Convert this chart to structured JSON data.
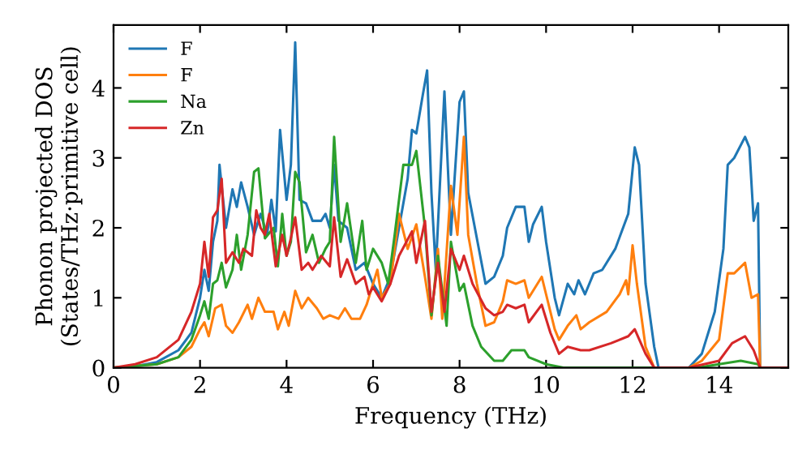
{
  "chart_data": {
    "type": "line",
    "xlabel": "Frequency (THz)",
    "ylabel": "Phonon projected DOS\n(States/THz·primitive cell)",
    "xlim": [
      0,
      15.6
    ],
    "ylim": [
      0,
      4.9
    ],
    "xticks": [
      0,
      2,
      4,
      6,
      8,
      10,
      12,
      14
    ],
    "yticks": [
      0,
      1,
      2,
      3,
      4
    ],
    "grid": false,
    "legend": "top left",
    "marker": "none",
    "line_style": "solid",
    "series": [
      {
        "name": "F",
        "color": "#1f77b4",
        "x": [
          0,
          0.5,
          1,
          1.5,
          1.8,
          2.0,
          2.1,
          2.2,
          2.3,
          2.4,
          2.45,
          2.6,
          2.75,
          2.85,
          2.95,
          3.1,
          3.25,
          3.4,
          3.55,
          3.65,
          3.75,
          3.85,
          4.0,
          4.1,
          4.2,
          4.3,
          4.45,
          4.6,
          4.8,
          4.9,
          5.0,
          5.1,
          5.2,
          5.4,
          5.6,
          5.8,
          6.0,
          6.2,
          6.4,
          6.6,
          6.8,
          6.9,
          7.0,
          7.15,
          7.25,
          7.35,
          7.45,
          7.65,
          7.8,
          8.0,
          8.1,
          8.2,
          8.4,
          8.6,
          8.8,
          9.0,
          9.1,
          9.3,
          9.5,
          9.6,
          9.7,
          9.9,
          10.0,
          10.2,
          10.3,
          10.5,
          10.65,
          10.75,
          10.9,
          11.1,
          11.3,
          11.6,
          11.9,
          12.05,
          12.15,
          12.3,
          12.5,
          12.6,
          13.3,
          13.6,
          13.9,
          14.1,
          14.2,
          14.35,
          14.6,
          14.7,
          14.8,
          14.9,
          14.95,
          15.6
        ],
        "values": [
          0,
          0.02,
          0.08,
          0.25,
          0.5,
          1.0,
          1.4,
          1.1,
          1.8,
          2.1,
          2.9,
          2.0,
          2.55,
          2.3,
          2.65,
          2.3,
          1.9,
          2.2,
          1.9,
          2.4,
          1.95,
          3.4,
          2.4,
          2.9,
          4.65,
          2.4,
          2.35,
          2.1,
          2.1,
          2.2,
          2.0,
          2.9,
          2.1,
          2.0,
          1.4,
          1.5,
          1.2,
          1.0,
          1.3,
          2.0,
          2.7,
          3.4,
          3.35,
          3.9,
          4.25,
          2.5,
          1.4,
          3.95,
          1.9,
          3.8,
          3.95,
          2.5,
          1.85,
          1.2,
          1.3,
          1.6,
          2.0,
          2.3,
          2.3,
          1.8,
          2.05,
          2.3,
          1.8,
          1.0,
          0.75,
          1.2,
          1.05,
          1.25,
          1.05,
          1.35,
          1.4,
          1.7,
          2.2,
          3.15,
          2.9,
          1.2,
          0.3,
          0,
          0,
          0.2,
          0.8,
          1.7,
          2.9,
          3.0,
          3.3,
          3.15,
          2.1,
          2.35,
          0,
          0
        ]
      },
      {
        "name": "F",
        "color": "#ff7f0e",
        "x": [
          0,
          1,
          1.5,
          1.8,
          2.0,
          2.1,
          2.2,
          2.35,
          2.5,
          2.6,
          2.75,
          2.9,
          3.1,
          3.2,
          3.35,
          3.5,
          3.7,
          3.8,
          3.95,
          4.05,
          4.2,
          4.35,
          4.5,
          4.7,
          4.85,
          5.0,
          5.2,
          5.35,
          5.5,
          5.7,
          5.85,
          6.0,
          6.1,
          6.2,
          6.4,
          6.6,
          6.8,
          7.0,
          7.2,
          7.35,
          7.5,
          7.6,
          7.8,
          7.95,
          8.1,
          8.2,
          8.4,
          8.6,
          8.8,
          9.0,
          9.1,
          9.3,
          9.5,
          9.6,
          9.9,
          10.0,
          10.2,
          10.3,
          10.5,
          10.7,
          10.8,
          11.0,
          11.4,
          11.7,
          11.85,
          11.9,
          12.0,
          12.1,
          12.3,
          12.5,
          13.3,
          13.6,
          14.0,
          14.2,
          14.35,
          14.6,
          14.75,
          14.9,
          14.95,
          15.6
        ],
        "values": [
          0,
          0.05,
          0.15,
          0.3,
          0.55,
          0.65,
          0.45,
          0.85,
          0.9,
          0.6,
          0.5,
          0.65,
          0.9,
          0.7,
          1.0,
          0.8,
          0.8,
          0.55,
          0.8,
          0.6,
          1.1,
          0.85,
          1.0,
          0.85,
          0.7,
          0.75,
          0.7,
          0.85,
          0.7,
          0.7,
          0.9,
          1.2,
          1.4,
          1.0,
          1.2,
          2.2,
          1.7,
          2.05,
          1.3,
          0.7,
          1.7,
          0.7,
          2.6,
          1.9,
          3.3,
          1.9,
          1.2,
          0.6,
          0.65,
          0.95,
          1.25,
          1.2,
          1.25,
          1.0,
          1.3,
          1.05,
          0.55,
          0.4,
          0.6,
          0.75,
          0.55,
          0.65,
          0.8,
          1.05,
          1.25,
          1.05,
          1.75,
          1.2,
          0.3,
          0,
          0,
          0.1,
          0.4,
          1.35,
          1.35,
          1.5,
          1.0,
          1.05,
          0,
          0
        ]
      },
      {
        "name": "Na",
        "color": "#2ca02c",
        "x": [
          0,
          1,
          1.5,
          1.8,
          2.0,
          2.1,
          2.2,
          2.3,
          2.4,
          2.5,
          2.6,
          2.75,
          2.85,
          2.95,
          3.1,
          3.25,
          3.35,
          3.5,
          3.7,
          3.8,
          3.9,
          4.0,
          4.1,
          4.2,
          4.3,
          4.45,
          4.6,
          4.75,
          4.9,
          5.0,
          5.1,
          5.25,
          5.4,
          5.6,
          5.75,
          5.85,
          6.0,
          6.2,
          6.35,
          6.5,
          6.7,
          6.9,
          7.0,
          7.2,
          7.35,
          7.5,
          7.7,
          7.8,
          8.0,
          8.1,
          8.3,
          8.5,
          8.8,
          9.0,
          9.2,
          9.5,
          9.6,
          10.0,
          10.4,
          13.5,
          14.0,
          14.5,
          14.9,
          14.95,
          15.6
        ],
        "values": [
          0,
          0.05,
          0.15,
          0.4,
          0.75,
          0.95,
          0.7,
          1.2,
          1.25,
          1.5,
          1.15,
          1.4,
          1.9,
          1.4,
          1.9,
          2.8,
          2.85,
          1.85,
          2.0,
          1.45,
          2.2,
          1.6,
          1.8,
          2.8,
          2.65,
          1.65,
          1.9,
          1.5,
          1.7,
          1.8,
          3.3,
          1.8,
          2.35,
          1.5,
          2.1,
          1.4,
          1.7,
          1.5,
          1.2,
          1.9,
          2.9,
          2.9,
          3.1,
          2.0,
          0.75,
          1.6,
          0.6,
          1.8,
          1.1,
          1.2,
          0.6,
          0.3,
          0.1,
          0.1,
          0.25,
          0.25,
          0.15,
          0.05,
          0,
          0,
          0.05,
          0.1,
          0.05,
          0,
          0
        ]
      },
      {
        "name": "Zn",
        "color": "#d62728",
        "x": [
          0,
          0.5,
          1,
          1.5,
          1.8,
          2.0,
          2.1,
          2.2,
          2.3,
          2.4,
          2.5,
          2.6,
          2.75,
          2.9,
          3.0,
          3.2,
          3.3,
          3.4,
          3.5,
          3.6,
          3.75,
          3.9,
          4.0,
          4.1,
          4.2,
          4.35,
          4.5,
          4.6,
          4.8,
          5.0,
          5.1,
          5.25,
          5.4,
          5.6,
          5.8,
          5.9,
          6.0,
          6.2,
          6.4,
          6.6,
          6.9,
          7.0,
          7.2,
          7.35,
          7.5,
          7.65,
          7.8,
          8.0,
          8.1,
          8.3,
          8.6,
          8.8,
          9.0,
          9.1,
          9.3,
          9.5,
          9.6,
          9.9,
          10.1,
          10.3,
          10.5,
          10.8,
          11.0,
          11.5,
          11.9,
          12.05,
          12.3,
          12.5,
          13.3,
          14.0,
          14.3,
          14.6,
          14.8,
          14.95,
          15.6
        ],
        "values": [
          0,
          0.05,
          0.15,
          0.4,
          0.8,
          1.2,
          1.8,
          1.3,
          2.15,
          2.25,
          2.7,
          1.5,
          1.65,
          1.5,
          1.7,
          1.6,
          2.25,
          2.0,
          1.9,
          2.2,
          1.45,
          1.9,
          1.6,
          1.85,
          2.15,
          1.4,
          1.5,
          1.4,
          1.6,
          1.45,
          2.15,
          1.3,
          1.55,
          1.2,
          1.3,
          1.05,
          1.15,
          0.95,
          1.2,
          1.6,
          1.95,
          1.5,
          2.1,
          0.8,
          1.5,
          0.8,
          1.7,
          1.4,
          1.6,
          1.2,
          0.85,
          0.75,
          0.8,
          0.9,
          0.85,
          0.9,
          0.65,
          0.9,
          0.5,
          0.2,
          0.3,
          0.25,
          0.25,
          0.35,
          0.45,
          0.55,
          0.2,
          0,
          0,
          0.1,
          0.35,
          0.45,
          0.25,
          0,
          0
        ]
      }
    ]
  }
}
